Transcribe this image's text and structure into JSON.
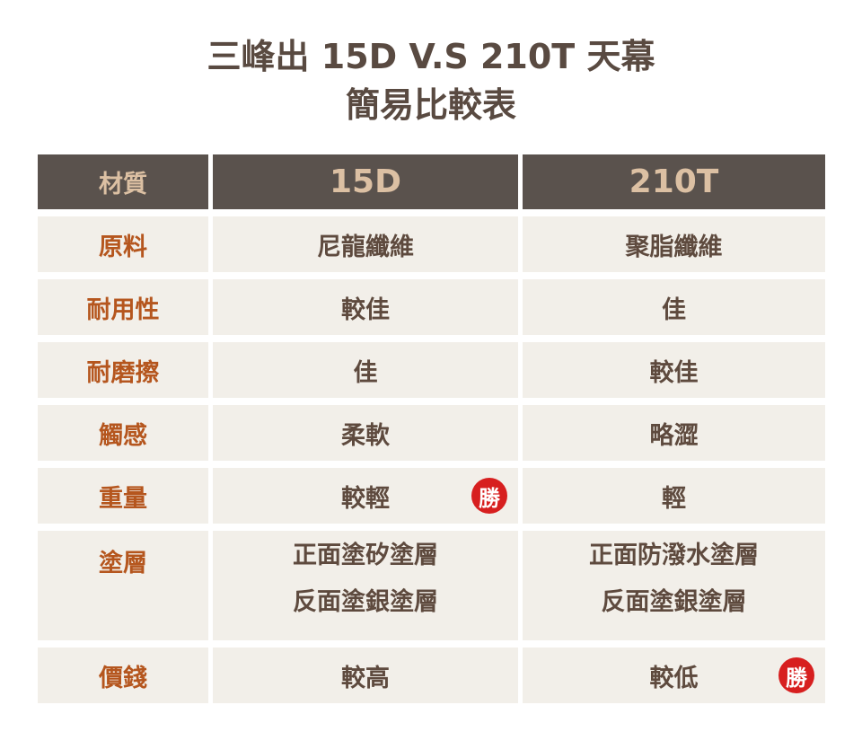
{
  "title": {
    "line1": "三峰出 15D   V.S   210T 天幕",
    "line2": "簡易比較表"
  },
  "colors": {
    "header_bg": "#5a524d",
    "header_text": "#dcc0a3",
    "label_text": "#b5561e",
    "cell_text": "#5e4a3e",
    "cell_bg": "#f2efe9",
    "badge": "#d71f1f"
  },
  "header": {
    "label": "材質",
    "col1": "15D",
    "col2": "210T"
  },
  "badge_text": "勝",
  "rows": [
    {
      "label": "原料",
      "col1": [
        "尼龍纖維"
      ],
      "col2": [
        "聚脂纖維"
      ]
    },
    {
      "label": "耐用性",
      "col1": [
        "較佳"
      ],
      "col2": [
        "佳"
      ]
    },
    {
      "label": "耐磨擦",
      "col1": [
        "佳"
      ],
      "col2": [
        "較佳"
      ]
    },
    {
      "label": "觸感",
      "col1": [
        "柔軟"
      ],
      "col2": [
        "略澀"
      ]
    },
    {
      "label": "重量",
      "col1": [
        "較輕"
      ],
      "col2": [
        "輕"
      ],
      "winner": "col1"
    },
    {
      "label": "塗層",
      "col1": [
        "正面塗矽塗層",
        "反面塗銀塗層"
      ],
      "col2": [
        "正面防潑水塗層",
        "反面塗銀塗層"
      ]
    },
    {
      "label": "價錢",
      "col1": [
        "較高"
      ],
      "col2": [
        "較低"
      ],
      "winner": "col2"
    }
  ]
}
